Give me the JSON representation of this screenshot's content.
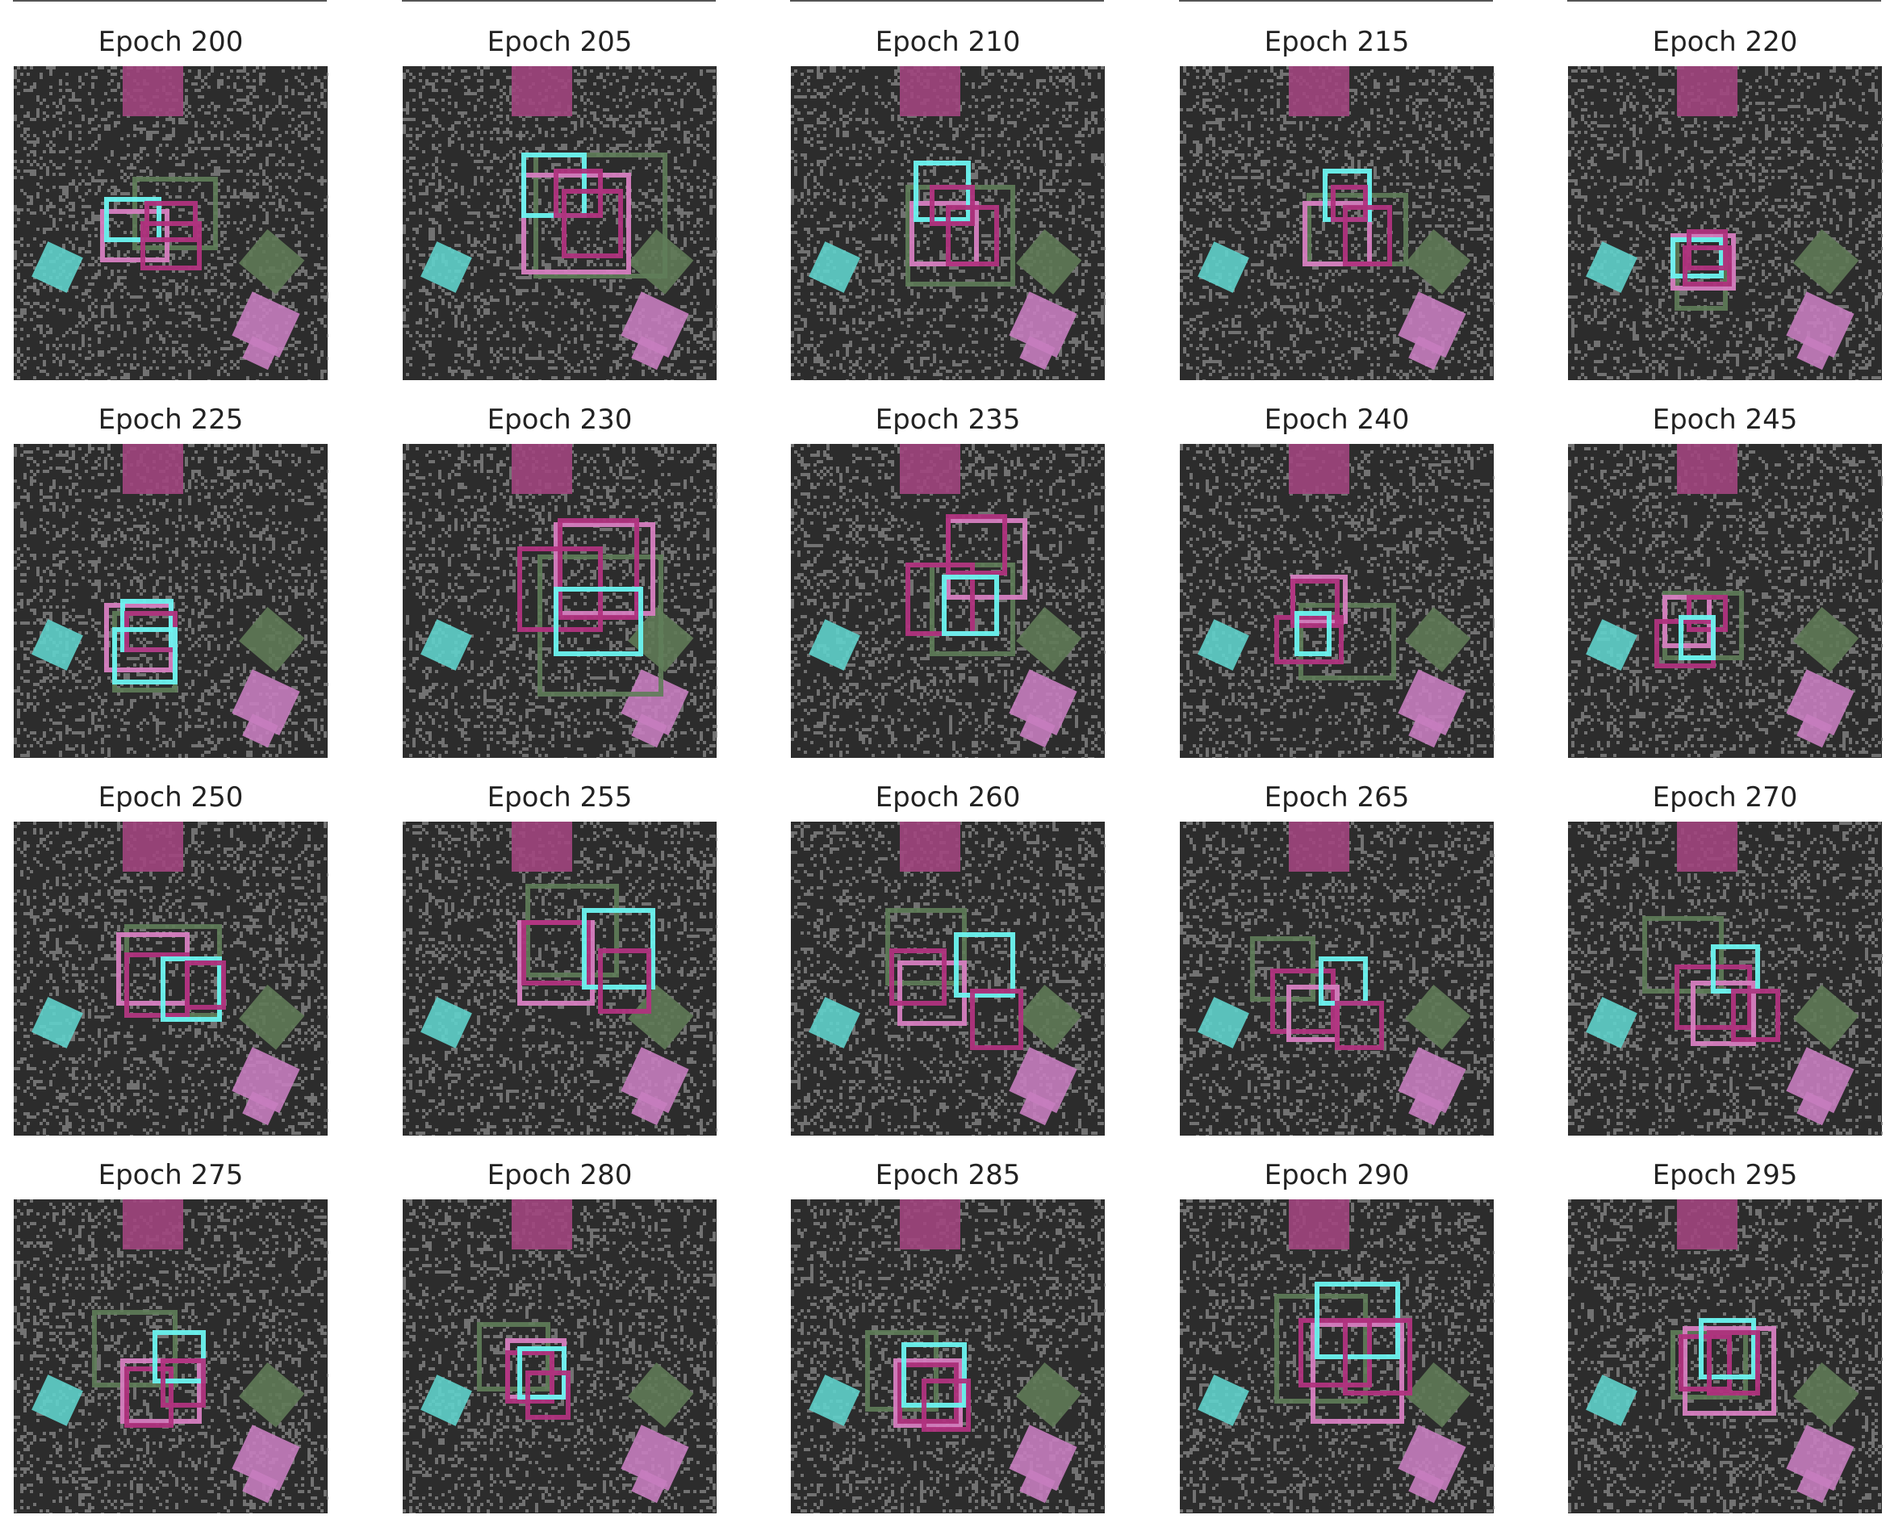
{
  "figure": {
    "columns": 5,
    "colors": {
      "background": "#ffffff",
      "noise_dark": "#2c2c2c",
      "noise_light": "#8a8a8a",
      "box_cyan": "#6cf4f0",
      "box_green": "#5f7d59",
      "box_pink": "#d67ec0",
      "box_magenta": "#b0337e",
      "obj_magenta": "#a1457e",
      "obj_cyan": "#5fd1cb",
      "obj_green": "#5f7a57",
      "obj_pink": "#c77dbf"
    },
    "panels": [
      {
        "title": "Epoch 200"
      },
      {
        "title": "Epoch 205"
      },
      {
        "title": "Epoch 210"
      },
      {
        "title": "Epoch 215"
      },
      {
        "title": "Epoch 220"
      },
      {
        "title": "Epoch 225"
      },
      {
        "title": "Epoch 230"
      },
      {
        "title": "Epoch 235"
      },
      {
        "title": "Epoch 240"
      },
      {
        "title": "Epoch 245"
      },
      {
        "title": "Epoch 250"
      },
      {
        "title": "Epoch 255"
      },
      {
        "title": "Epoch 260"
      },
      {
        "title": "Epoch 265"
      },
      {
        "title": "Epoch 270"
      },
      {
        "title": "Epoch 275"
      },
      {
        "title": "Epoch 280"
      },
      {
        "title": "Epoch 285"
      },
      {
        "title": "Epoch 290"
      },
      {
        "title": "Epoch 295"
      }
    ]
  }
}
